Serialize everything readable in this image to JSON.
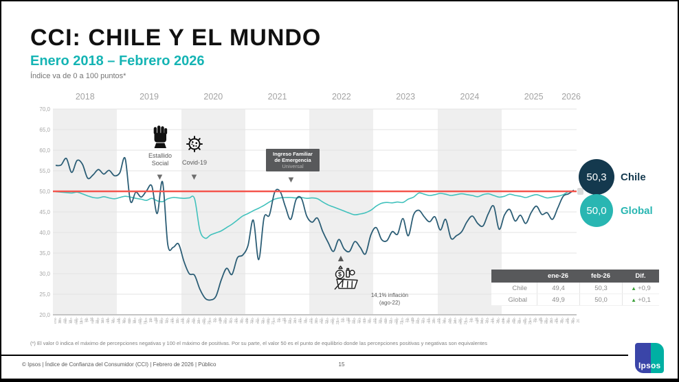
{
  "slide": {
    "title": "CCI: CHILE Y EL MUNDO",
    "subtitle": "Enero 2018 – Febrero 2026",
    "note": "Índice va de 0 a 100 puntos*"
  },
  "chart_data": {
    "type": "line",
    "title": "CCI: Chile y el Mundo",
    "ylim": [
      20,
      70
    ],
    "ytick_step": 5,
    "ytick_labels": [
      "70,0",
      "65,0",
      "60,0",
      "55,0",
      "50,0",
      "45,0",
      "40,0",
      "35,0",
      "30,0",
      "25,0",
      "20,0"
    ],
    "year_labels": [
      "2018",
      "2019",
      "2020",
      "2021",
      "2022",
      "2023",
      "2024",
      "2025",
      "2026"
    ],
    "reference_line": {
      "value": 50,
      "color": "#f4544c"
    },
    "grid": true,
    "legend_position": "right",
    "x": [
      "ene-18",
      "feb-18",
      "mar-18",
      "abr-18",
      "may-18",
      "jun-18",
      "jul-18",
      "ago-18",
      "sep-18",
      "oct-18",
      "nov-18",
      "dic-18",
      "ene-19",
      "feb-19",
      "mar-19",
      "abr-19",
      "may-19",
      "jun-19",
      "jul-19",
      "ago-19",
      "sep-19",
      "oct-19",
      "nov-19",
      "dic-19",
      "ene-20",
      "feb-20",
      "mar-20",
      "abr-20",
      "may-20",
      "jun-20",
      "jul-20",
      "ago-20",
      "sep-20",
      "oct-20",
      "nov-20",
      "dic-20",
      "ene-21",
      "feb-21",
      "mar-21",
      "abr-21",
      "may-21",
      "jun-21",
      "jul-21",
      "ago-21",
      "sep-21",
      "oct-21",
      "nov-21",
      "dic-21",
      "ene-22",
      "feb-22",
      "mar-22",
      "abr-22",
      "may-22",
      "jun-22",
      "jul-22",
      "ago-22",
      "sep-22",
      "oct-22",
      "nov-22",
      "dic-22",
      "ene-23",
      "feb-23",
      "mar-23",
      "abr-23",
      "may-23",
      "jun-23",
      "jul-23",
      "ago-23",
      "sep-23",
      "oct-23",
      "nov-23",
      "dic-23",
      "ene-24",
      "feb-24",
      "mar-24",
      "abr-24",
      "may-24",
      "jun-24",
      "jul-24",
      "ago-24",
      "sep-24",
      "oct-24",
      "nov-24",
      "dic-24",
      "ene-25",
      "feb-25",
      "mar-25",
      "abr-25",
      "may-25",
      "jun-25",
      "jul-25",
      "ago-25",
      "sep-25",
      "oct-25",
      "nov-25",
      "dic-25",
      "ene-26",
      "feb-26"
    ],
    "series": [
      {
        "name": "Chile",
        "color": "#2b5d75",
        "values": [
          56.3,
          56.4,
          58.0,
          54.6,
          57.5,
          56.6,
          53.2,
          54.0,
          55.3,
          54.2,
          55.1,
          53.8,
          54.5,
          58.0,
          47.6,
          49.8,
          48.6,
          50.1,
          51.3,
          44.6,
          52.3,
          37.0,
          36.4,
          37.2,
          33.0,
          30.0,
          29.6,
          26.2,
          24.0,
          23.6,
          24.5,
          28.5,
          31.3,
          29.8,
          33.8,
          34.5,
          36.8,
          43.0,
          33.4,
          43.6,
          44.2,
          49.8,
          50.0,
          46.3,
          43.2,
          48.0,
          48.3,
          44.0,
          42.5,
          43.5,
          40.2,
          37.6,
          35.4,
          38.3,
          36.0,
          35.4,
          37.8,
          36.4,
          34.8,
          39.4,
          41.2,
          38.3,
          38.0,
          40.2,
          39.6,
          43.4,
          39.2,
          44.3,
          45.4,
          43.8,
          42.6,
          43.8,
          40.6,
          43.2,
          38.6,
          39.2,
          40.2,
          42.6,
          44.0,
          42.2,
          41.6,
          44.6,
          46.4,
          40.8,
          44.2,
          45.6,
          42.8,
          44.2,
          42.2,
          44.8,
          46.4,
          44.4,
          44.8,
          43.2,
          46.0,
          48.8,
          49.4,
          50.3
        ]
      },
      {
        "name": "Global",
        "color": "#40c1bc",
        "values": [
          49.9,
          49.8,
          49.7,
          49.6,
          49.8,
          49.4,
          48.9,
          48.5,
          48.4,
          48.7,
          48.4,
          48.2,
          48.5,
          48.8,
          48.6,
          48.3,
          48.1,
          47.8,
          48.3,
          47.7,
          47.5,
          48.2,
          48.5,
          48.4,
          48.3,
          48.4,
          48.2,
          40.5,
          38.6,
          39.4,
          39.9,
          40.4,
          41.2,
          42.0,
          43.0,
          44.0,
          44.6,
          45.3,
          45.9,
          46.6,
          47.4,
          48.1,
          48.4,
          48.5,
          48.5,
          48.4,
          48.5,
          48.3,
          48.4,
          48.2,
          47.4,
          46.7,
          46.2,
          45.7,
          45.2,
          44.7,
          44.3,
          44.5,
          44.8,
          45.4,
          46.4,
          47.1,
          47.3,
          47.2,
          47.4,
          47.3,
          48.1,
          48.6,
          49.6,
          49.3,
          49.0,
          49.2,
          49.5,
          49.3,
          49.0,
          49.2,
          49.4,
          49.2,
          49.0,
          48.7,
          49.2,
          49.4,
          49.0,
          48.6,
          48.8,
          49.3,
          49.0,
          48.8,
          48.5,
          48.9,
          49.2,
          48.8,
          48.4,
          48.6,
          48.8,
          49.2,
          49.9,
          50.0
        ]
      }
    ]
  },
  "annotations": {
    "estallido": {
      "line1": "Estallido",
      "line2": "Social"
    },
    "covid": {
      "label": "Covid-19"
    },
    "ife": {
      "line1": "Ingreso Familiar",
      "line2": "de Emergencia",
      "line3": "Universal"
    },
    "inflacion": {
      "line1": "14,1% inflación",
      "line2": "(ago-22)"
    }
  },
  "legend": {
    "chile": {
      "value": "50,3",
      "label": "Chile",
      "color": "#14394e"
    },
    "global": {
      "value": "50,0",
      "label": "Global",
      "color": "#29b6b2"
    }
  },
  "table": {
    "headers": {
      "col1": "",
      "col2": "ene-26",
      "col3": "feb-26",
      "col4": "Dif."
    },
    "rows": [
      {
        "label": "Chile",
        "ene": "49,4",
        "feb": "50,3",
        "dif": "+0,9"
      },
      {
        "label": "Global",
        "ene": "49,9",
        "feb": "50,0",
        "dif": "+0,1"
      }
    ]
  },
  "footnote": "(*) El valor 0 indica el máximo de percepciones negativas y 100 el máximo de positivas. Por su parte, el valor 50 es el punto de equilibrio donde las percepciones positivas y negativas son equivalentes",
  "footer": {
    "left": "© Ipsos | Índice de Confianza del Consumidor (CCI) | Febrero de 2026 | Público",
    "page": "15",
    "logo_text": "Ipsos"
  }
}
